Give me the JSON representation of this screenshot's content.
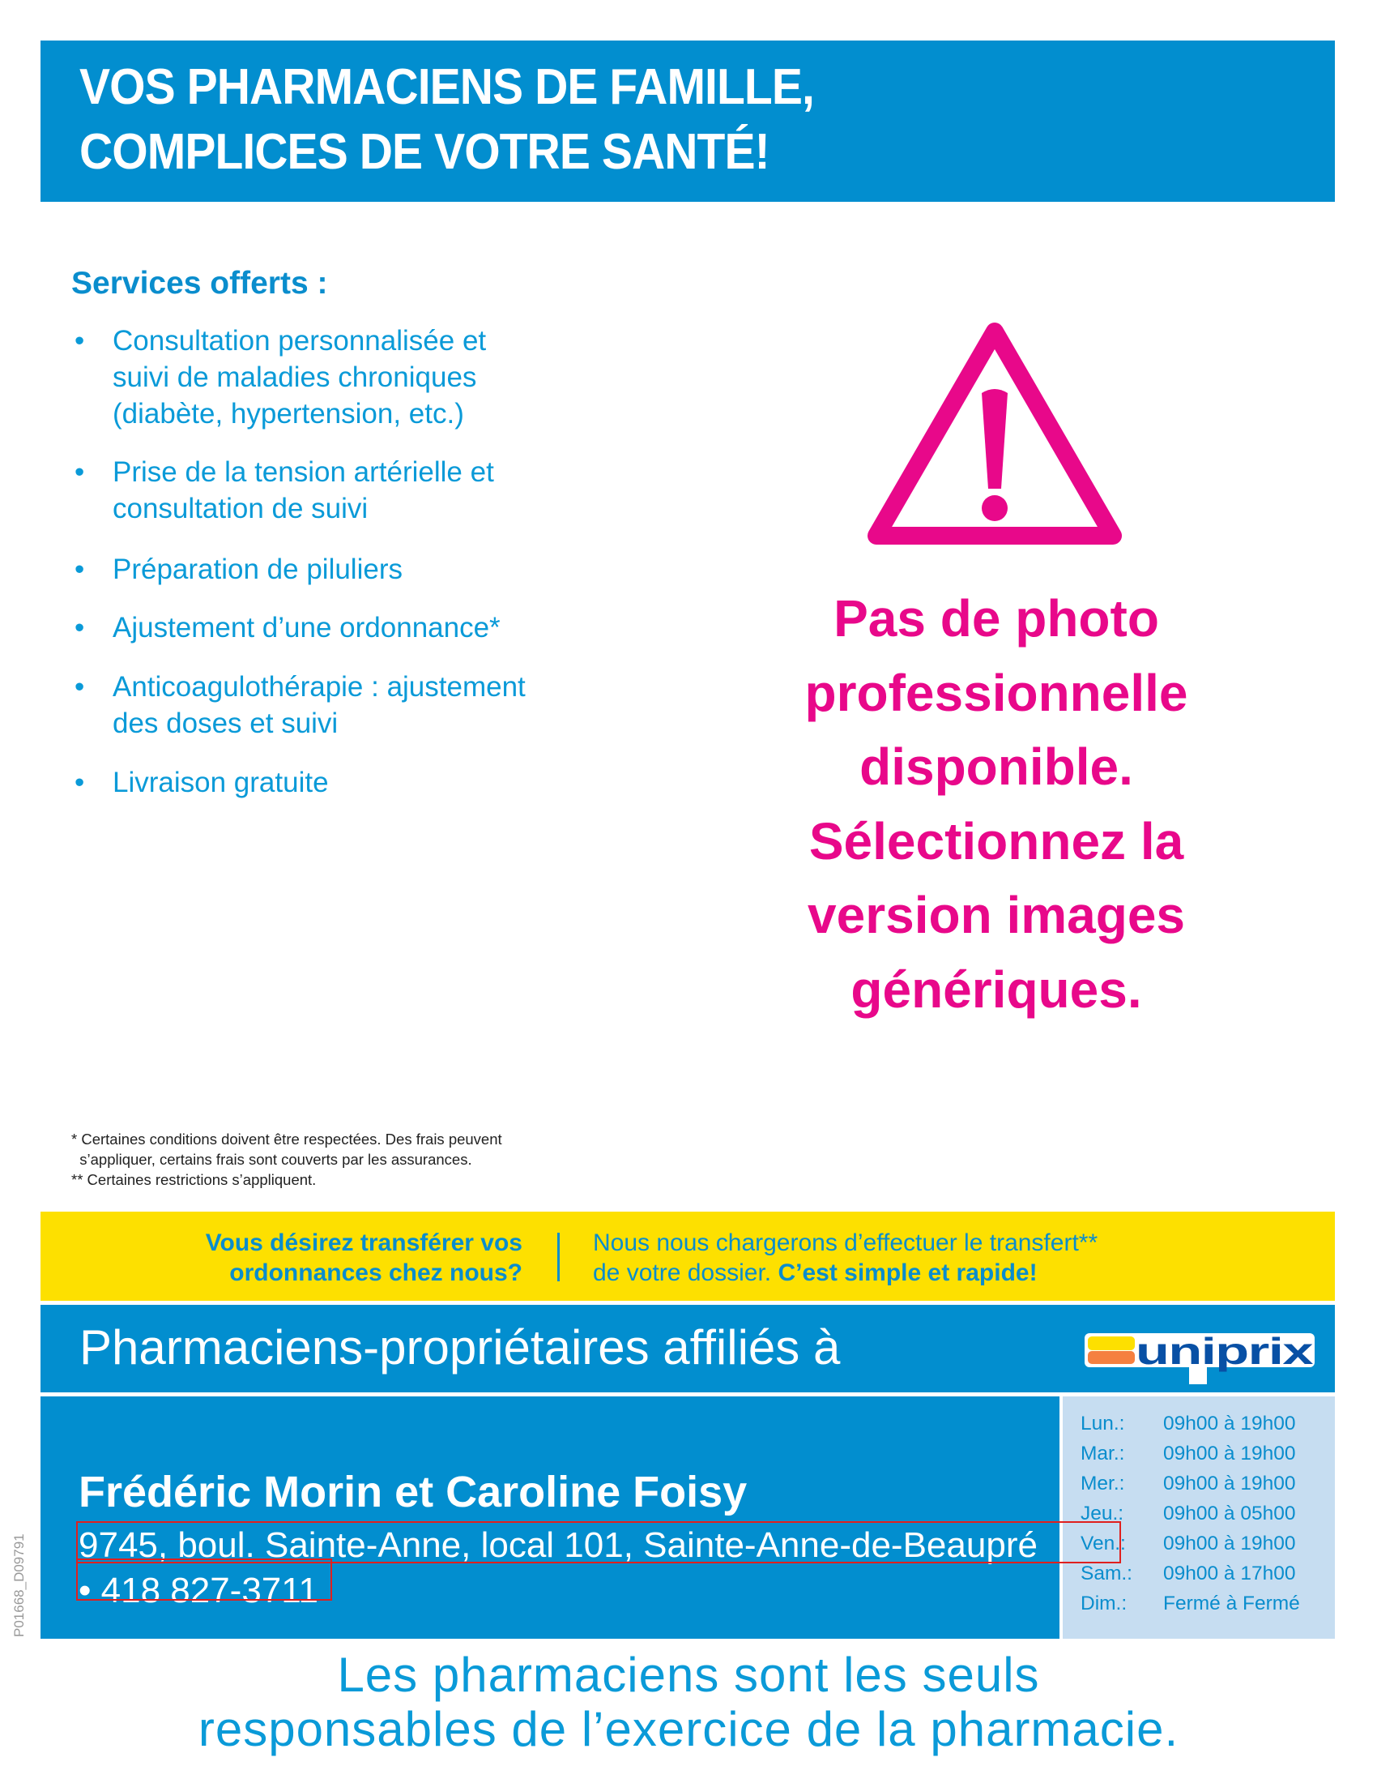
{
  "header": {
    "line1": "VOS PHARMACIENS DE FAMILLE,",
    "line2": "COMPLICES DE VOTRE SANTÉ!"
  },
  "services": {
    "title": "Services offerts :",
    "items": [
      [
        "Consultation personnalisée et",
        "suivi de maladies chroniques",
        "(diabète, hypertension, etc.)"
      ],
      [
        "Prise de la tension artérielle et",
        "consultation de suivi"
      ],
      [
        "Préparation de piluliers"
      ],
      [
        "Ajustement d’une ordonnance*"
      ],
      [
        "Anticoagulothérapie : ajustement",
        "des doses et suivi"
      ],
      [
        "Livraison gratuite"
      ]
    ],
    "bullet": "•"
  },
  "placeholder": {
    "icon": "warning-triangle-icon",
    "color": "#e8088a",
    "lines": [
      "Pas de photo",
      "professionnelle",
      "disponible.",
      "Sélectionnez la",
      "version images",
      "génériques."
    ]
  },
  "footnotes": [
    "* Certaines conditions doivent être respectées. Des frais peuvent",
    "  s’appliquer, certains frais sont couverts par les assurances.",
    "** Certaines restrictions s’appliquent."
  ],
  "transfer": {
    "question_l1": "Vous désirez transférer vos",
    "question_l2": "ordonnances chez nous?",
    "answer_l1": "Nous nous chargerons d’effectuer le transfert**",
    "answer_l2": "de votre dossier. ",
    "answer_bold": "C’est simple et rapide!"
  },
  "affiliation": {
    "text": "Pharmaciens-propriétaires affiliés à",
    "logo": "uniprix"
  },
  "pharmacy": {
    "name": "Frédéric Morin et Caroline Foisy",
    "address": "9745, boul. Sainte-Anne, local 101, Sainte-Anne-de-Beaupré",
    "phone": "• 418 827-3711"
  },
  "hours": [
    {
      "day": "Lun.:",
      "time": "09h00 à 19h00"
    },
    {
      "day": "Mar.:",
      "time": "09h00 à 19h00"
    },
    {
      "day": "Mer.:",
      "time": "09h00 à 19h00"
    },
    {
      "day": "Jeu.:",
      "time": "09h00 à 05h00"
    },
    {
      "day": "Ven.:",
      "time": "09h00 à 19h00"
    },
    {
      "day": "Sam.:",
      "time": "09h00 à 17h00"
    },
    {
      "day": "Dim.:",
      "time": "Fermé à Fermé"
    }
  ],
  "code": "P01668_D09791",
  "footer": {
    "line1": "Les pharmaciens sont les seuls",
    "line2": "responsables de l’exercice de la pharmacie."
  },
  "colors": {
    "blue": "#028ecf",
    "yellow": "#fde000",
    "pink": "#e8088a",
    "hours_bg": "#c6ddf1"
  }
}
